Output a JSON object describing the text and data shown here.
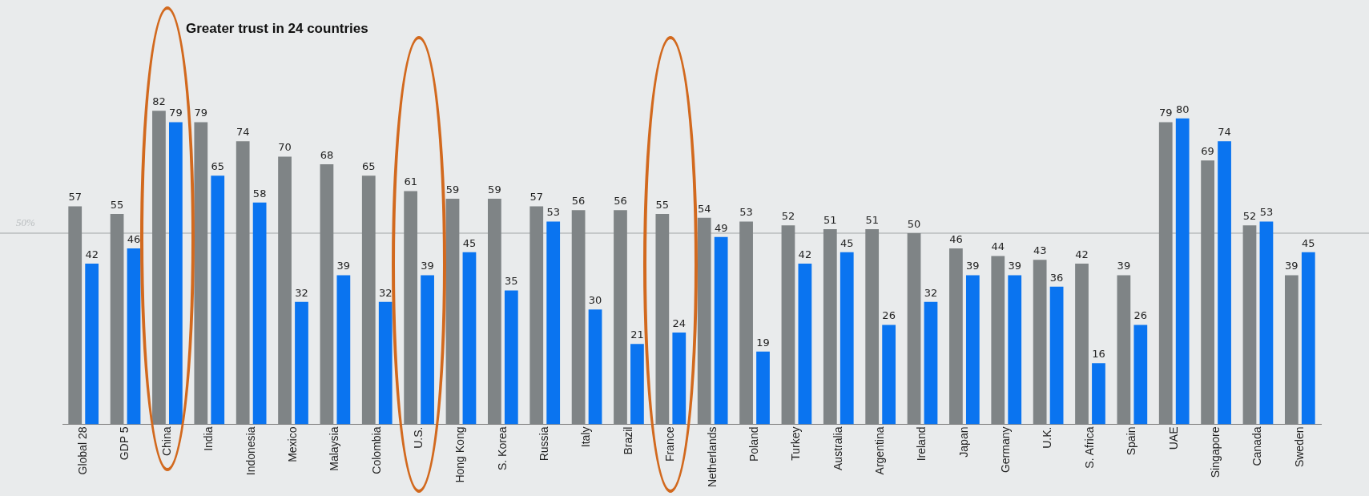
{
  "chart_data": {
    "type": "bar",
    "title": "Greater trust in 24 countries",
    "categories": [
      "Global 28",
      "GDP 5",
      "China",
      "India",
      "Indonesia",
      "Mexico",
      "Malaysia",
      "Colombia",
      "U.S.",
      "Hong Kong",
      "S. Korea",
      "Russia",
      "Italy",
      "Brazil",
      "France",
      "Netherlands",
      "Poland",
      "Turkey",
      "Australia",
      "Argentina",
      "Ireland",
      "Japan",
      "Germany",
      "U.K.",
      "S. Africa",
      "Spain",
      "UAE",
      "Singapore",
      "Canada",
      "Sweden"
    ],
    "series": [
      {
        "color": "#7f8486",
        "values": [
          57,
          55,
          82,
          79,
          74,
          70,
          68,
          65,
          61,
          59,
          59,
          57,
          56,
          56,
          55,
          54,
          53,
          52,
          51,
          51,
          50,
          46,
          44,
          43,
          42,
          39,
          79,
          69,
          52,
          39
        ]
      },
      {
        "color": "#0a74f0",
        "values": [
          42,
          46,
          79,
          65,
          58,
          32,
          39,
          32,
          39,
          45,
          35,
          53,
          30,
          21,
          24,
          49,
          19,
          42,
          45,
          26,
          32,
          39,
          39,
          36,
          16,
          26,
          80,
          74,
          53,
          45
        ]
      }
    ],
    "relative": false,
    "ref_lines": [
      {
        "axis": "y",
        "value": 50,
        "label": "50%",
        "color": "#b8bcbe"
      }
    ],
    "data_labels": true,
    "grid": false,
    "legend": false
  }
}
